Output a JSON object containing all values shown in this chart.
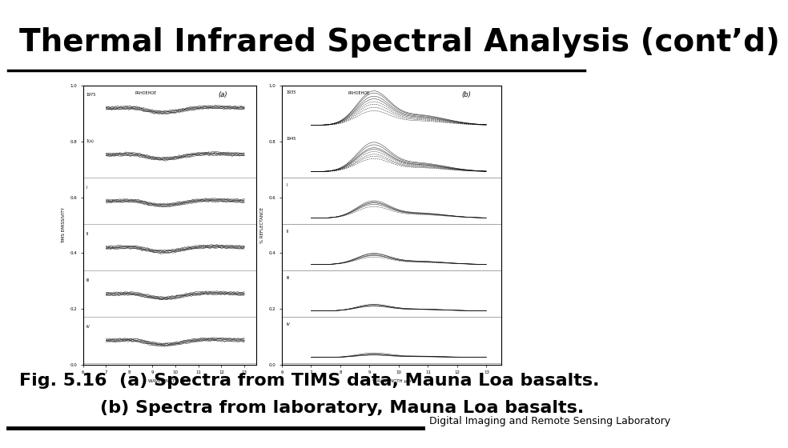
{
  "title": "Thermal Infrared Spectral Analysis (cont’d)",
  "title_fontsize": 28,
  "title_bold": true,
  "title_color": "#000000",
  "background_color": "#ffffff",
  "header_line_color": "#000000",
  "footer_line_color": "#000000",
  "caption_line1": "Fig. 5.16  (a) Spectra from TIMS data, Mauna Loa basalts.",
  "caption_line2": "(b) Spectra from laboratory, Mauna Loa basalts.",
  "caption_fontsize": 16,
  "caption_bold": true,
  "footer_text": "Digital Imaging and Remote Sensing Laboratory",
  "footer_fontsize": 9
}
